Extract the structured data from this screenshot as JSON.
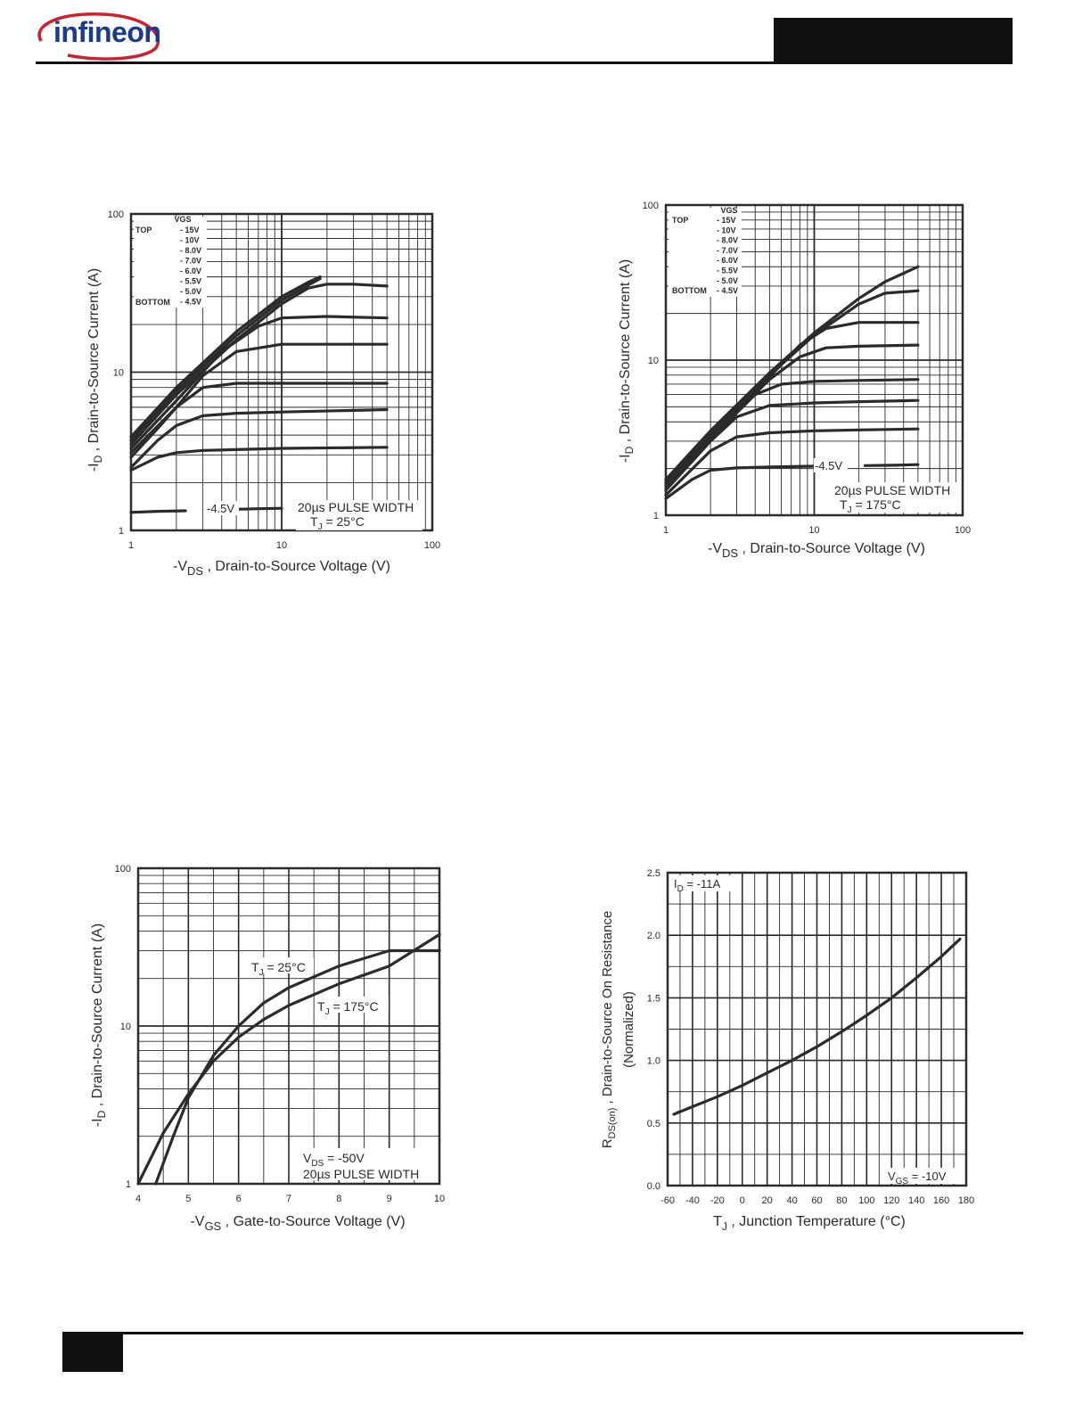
{
  "header": {
    "logo_text": "infineon"
  },
  "colors": {
    "ink": "#2b2b2b",
    "logo_blue": "#1b3a8c",
    "logo_red": "#d0202e",
    "rule": "#111111"
  },
  "chart_data": [
    {
      "type": "line",
      "x_scale": "log",
      "y_scale": "log",
      "xlim": [
        1,
        100
      ],
      "ylim": [
        1,
        100
      ],
      "x_ticks": [
        "1",
        "10",
        "100"
      ],
      "y_ticks": [
        "1",
        "10",
        "100"
      ],
      "xlabel": {
        "pre": "-V",
        "sub": "DS",
        "post": " , Drain-to-Source Voltage (V)"
      },
      "ylabel": {
        "pre": "-I",
        "sub": "D",
        "post": " , Drain-to-Source Current (A)"
      },
      "legend": {
        "header": "VGS",
        "top": "TOP",
        "bottom": "BOTTOM",
        "entries": [
          "- 15V",
          "- 10V",
          "- 8.0V",
          "- 7.0V",
          "- 6.0V",
          "- 5.5V",
          "- 5.0V",
          "- 4.5V"
        ]
      },
      "annotations": {
        "curve_label": "-4.5V",
        "pulse": "20µs PULSE WIDTH",
        "tj_pre": "T",
        "tj_sub": "J",
        "tj_post": " = 25°C"
      },
      "series": [
        {
          "x": [
            1,
            2,
            5,
            10,
            15,
            18
          ],
          "y": [
            3.9,
            8,
            18,
            30,
            37,
            40
          ]
        },
        {
          "x": [
            1,
            2,
            5,
            10,
            15,
            18
          ],
          "y": [
            3.7,
            7.6,
            17,
            28.5,
            35.5,
            39
          ]
        },
        {
          "x": [
            1,
            2,
            5,
            10,
            15,
            20,
            30,
            50
          ],
          "y": [
            3.5,
            7.2,
            16,
            27,
            34,
            36,
            36,
            35
          ]
        },
        {
          "x": [
            1,
            2,
            4,
            7,
            10,
            20,
            50
          ],
          "y": [
            3.3,
            6.6,
            13.5,
            19.5,
            22,
            22.5,
            22
          ]
        },
        {
          "x": [
            1,
            2,
            3,
            5,
            10,
            20,
            50
          ],
          "y": [
            3.1,
            6,
            9.5,
            13.5,
            15,
            15,
            15
          ]
        },
        {
          "x": [
            1,
            1.5,
            2,
            3,
            5,
            10,
            50
          ],
          "y": [
            2.9,
            4.4,
            6,
            8,
            8.5,
            8.5,
            8.5
          ]
        },
        {
          "x": [
            1,
            1.5,
            2,
            3,
            5,
            10,
            50
          ],
          "y": [
            2.5,
            3.7,
            4.6,
            5.3,
            5.5,
            5.6,
            5.8
          ]
        },
        {
          "x": [
            1,
            1.5,
            2,
            3,
            10,
            50
          ],
          "y": [
            2.4,
            2.9,
            3.1,
            3.2,
            3.3,
            3.35
          ]
        },
        {
          "x": [
            1,
            1.5,
            2.3
          ],
          "y": [
            1.3,
            1.32,
            1.33
          ]
        },
        {
          "x": [
            3.7,
            5,
            7,
            10
          ],
          "y": [
            1.35,
            1.36,
            1.37,
            1.38
          ]
        }
      ]
    },
    {
      "type": "line",
      "x_scale": "log",
      "y_scale": "log",
      "xlim": [
        1,
        100
      ],
      "ylim": [
        1,
        100
      ],
      "x_ticks": [
        "1",
        "10",
        "100"
      ],
      "y_ticks": [
        "1",
        "10",
        "100"
      ],
      "xlabel": {
        "pre": "-V",
        "sub": "DS",
        "post": " , Drain-to-Source Voltage (V)"
      },
      "ylabel": {
        "pre": "-I",
        "sub": "D",
        "post": " , Drain-to-Source Current (A)"
      },
      "legend": {
        "header": "VGS",
        "top": "TOP",
        "bottom": "BOTTOM",
        "entries": [
          "- 15V",
          "- 10V",
          "- 8.0V",
          "- 7.0V",
          "- 6.0V",
          "- 5.5V",
          "- 5.0V",
          "- 4.5V"
        ]
      },
      "annotations": {
        "curve_label": "-4.5V",
        "pulse": "20µs PULSE WIDTH",
        "tj_pre": "T",
        "tj_sub": "J",
        "tj_post": " = 175°C"
      },
      "series": [
        {
          "x": [
            1,
            2,
            5,
            10,
            20,
            30,
            50
          ],
          "y": [
            1.7,
            3.5,
            8.3,
            15,
            25,
            32,
            40
          ]
        },
        {
          "x": [
            1,
            2,
            5,
            10,
            20,
            30,
            50
          ],
          "y": [
            1.65,
            3.4,
            8,
            14.5,
            23,
            27,
            28
          ]
        },
        {
          "x": [
            1,
            2,
            5,
            8,
            12,
            20,
            50
          ],
          "y": [
            1.6,
            3.3,
            7.8,
            12.5,
            16,
            17.5,
            17.5
          ]
        },
        {
          "x": [
            1,
            2,
            5,
            8,
            12,
            20,
            50
          ],
          "y": [
            1.55,
            3.2,
            7.5,
            10.5,
            12,
            12.3,
            12.5
          ]
        },
        {
          "x": [
            1,
            2,
            4,
            6,
            10,
            20,
            50
          ],
          "y": [
            1.5,
            3.1,
            6,
            7,
            7.3,
            7.4,
            7.5
          ]
        },
        {
          "x": [
            1,
            2,
            3,
            5,
            10,
            20,
            50
          ],
          "y": [
            1.45,
            3,
            4.3,
            5.1,
            5.3,
            5.4,
            5.5
          ]
        },
        {
          "x": [
            1,
            2,
            3,
            5,
            10,
            20,
            50
          ],
          "y": [
            1.35,
            2.6,
            3.2,
            3.4,
            3.5,
            3.55,
            3.6
          ]
        },
        {
          "x": [
            1,
            1.5,
            2,
            3,
            5,
            10,
            16
          ],
          "y": [
            1.28,
            1.7,
            1.95,
            2.02,
            2.05,
            2.07,
            2.08
          ]
        },
        {
          "x": [
            22,
            35,
            50
          ],
          "y": [
            2.09,
            2.1,
            2.12
          ]
        }
      ]
    },
    {
      "type": "line",
      "x_scale": "linear",
      "y_scale": "log",
      "xlim": [
        4,
        10
      ],
      "ylim": [
        1,
        100
      ],
      "x_ticks": [
        "4",
        "5",
        "6",
        "7",
        "8",
        "9",
        "10"
      ],
      "y_ticks": [
        "1",
        "10",
        "100"
      ],
      "xlabel": {
        "pre": "-V",
        "sub": "GS",
        "post": " , Gate-to-Source Voltage (V)"
      },
      "ylabel": {
        "pre": "-I",
        "sub": "D",
        "post": " , Drain-to-Source Current (A)"
      },
      "annotations": {
        "tj25_pre": "T",
        "tj25_sub": "J",
        "tj25_post": " = 25°C",
        "tj175_pre": "T",
        "tj175_sub": "J",
        "tj175_post": " = 175°C",
        "vds_pre": "V",
        "vds_sub": "DS",
        "vds_post": " = -50V",
        "pulse": "20µs PULSE WIDTH"
      },
      "series": [
        {
          "name": "TJ = 25°C",
          "x": [
            4.35,
            4.7,
            5,
            5.5,
            6,
            6.5,
            7,
            8,
            9,
            10
          ],
          "y": [
            1,
            2,
            3.5,
            6.5,
            10,
            14,
            17.5,
            24,
            30,
            30
          ]
        },
        {
          "name": "TJ = 175°C",
          "x": [
            4,
            4.5,
            5,
            5.5,
            6,
            6.5,
            7,
            8,
            9,
            10
          ],
          "y": [
            1,
            2.1,
            3.7,
            6,
            8.5,
            11,
            13.5,
            18.5,
            24,
            38
          ]
        }
      ]
    },
    {
      "type": "line",
      "x_scale": "linear",
      "y_scale": "linear",
      "xlim": [
        -60,
        180
      ],
      "ylim": [
        0.0,
        2.5
      ],
      "x_ticks": [
        "-60",
        "-40",
        "-20",
        "0",
        "20",
        "40",
        "60",
        "80",
        "100",
        "120",
        "140",
        "160",
        "180"
      ],
      "y_ticks": [
        "0.0",
        "0.5",
        "1.0",
        "1.5",
        "2.0",
        "2.5"
      ],
      "xlabel": {
        "pre": "T",
        "sub": "J",
        "post": " , Junction Temperature (°C)"
      },
      "ylabel_line1": {
        "pre": "R",
        "sub": "DS(on)",
        "post": " ,  Drain-to-Source On Resistance"
      },
      "ylabel_line2": "(Normalized)",
      "annotations": {
        "id_pre": "I",
        "id_sub": "D",
        "id_post": " = -11A",
        "vgs_pre": "V",
        "vgs_sub": "GS",
        "vgs_post": " = -10V"
      },
      "series": [
        {
          "x": [
            -55,
            -40,
            -20,
            0,
            20,
            40,
            60,
            80,
            100,
            120,
            140,
            160,
            175
          ],
          "y": [
            0.57,
            0.63,
            0.71,
            0.8,
            0.9,
            1.0,
            1.11,
            1.23,
            1.36,
            1.5,
            1.66,
            1.83,
            1.97
          ]
        }
      ]
    }
  ]
}
